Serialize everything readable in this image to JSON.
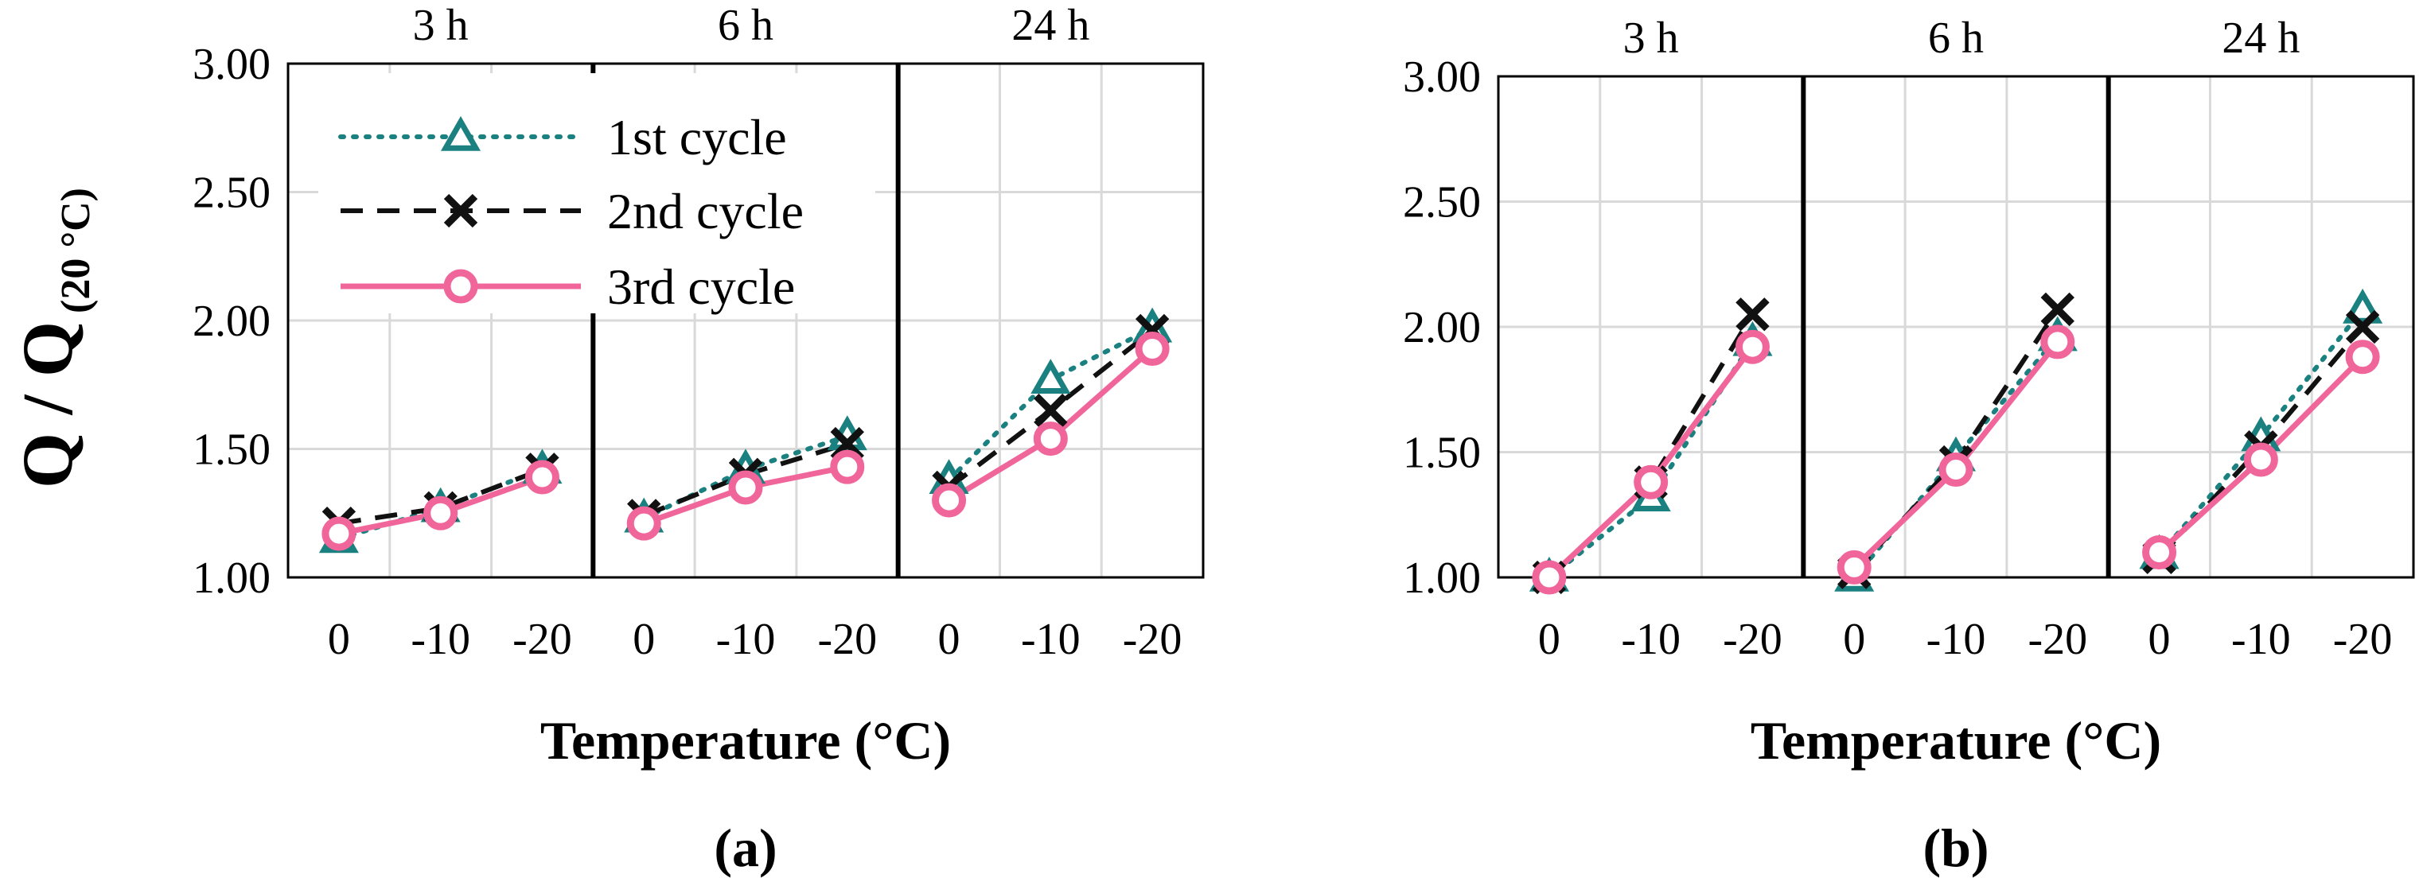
{
  "y_axis_label": {
    "main": "Q / Q",
    "subscript": "(20 °C)"
  },
  "colors": {
    "cycle1": "#1a8080",
    "cycle2": "#111111",
    "cycle3": "#f0669a",
    "grid": "#d9d9d9",
    "frame": "#000000"
  },
  "legend": [
    {
      "key": "cycle1",
      "label": "1st cycle"
    },
    {
      "key": "cycle2",
      "label": "2nd cycle"
    },
    {
      "key": "cycle3",
      "label": "3rd cycle"
    }
  ],
  "chart_data": [
    {
      "type": "line",
      "caption": "(a)",
      "xlabel": "Temperature (°C)",
      "ylim": [
        1.0,
        3.0
      ],
      "yticks": [
        "1.00",
        "1.50",
        "2.00",
        "2.50",
        "3.00"
      ],
      "categories": [
        "0",
        "-10",
        "-20"
      ],
      "panels": [
        {
          "label": "3 h",
          "series": [
            {
              "name": "1st cycle",
              "values": [
                1.15,
                1.27,
                1.42
              ]
            },
            {
              "name": "2nd cycle",
              "values": [
                1.21,
                1.27,
                1.42
              ]
            },
            {
              "name": "3rd cycle",
              "values": [
                1.17,
                1.25,
                1.39
              ]
            }
          ]
        },
        {
          "label": "6 h",
          "series": [
            {
              "name": "1st cycle",
              "values": [
                1.23,
                1.42,
                1.55
              ]
            },
            {
              "name": "2nd cycle",
              "values": [
                1.24,
                1.4,
                1.52
              ]
            },
            {
              "name": "3rd cycle",
              "values": [
                1.21,
                1.35,
                1.43
              ]
            }
          ]
        },
        {
          "label": "24 h",
          "series": [
            {
              "name": "1st cycle",
              "values": [
                1.38,
                1.77,
                1.97
              ]
            },
            {
              "name": "2nd cycle",
              "values": [
                1.35,
                1.65,
                1.96
              ]
            },
            {
              "name": "3rd cycle",
              "values": [
                1.3,
                1.54,
                1.89
              ]
            }
          ]
        }
      ]
    },
    {
      "type": "line",
      "caption": "(b)",
      "xlabel": "Temperature (°C)",
      "ylim": [
        1.0,
        3.0
      ],
      "yticks": [
        "1.00",
        "1.50",
        "2.00",
        "2.50",
        "3.00"
      ],
      "categories": [
        "0",
        "-10",
        "-20"
      ],
      "panels": [
        {
          "label": "3 h",
          "series": [
            {
              "name": "1st cycle",
              "values": [
                1.0,
                1.32,
                1.94
              ]
            },
            {
              "name": "2nd cycle",
              "values": [
                1.0,
                1.38,
                2.05
              ]
            },
            {
              "name": "3rd cycle",
              "values": [
                1.0,
                1.38,
                1.92
              ]
            }
          ]
        },
        {
          "label": "6 h",
          "series": [
            {
              "name": "1st cycle",
              "values": [
                1.0,
                1.48,
                1.96
              ]
            },
            {
              "name": "2nd cycle",
              "values": [
                1.02,
                1.46,
                2.07
              ]
            },
            {
              "name": "3rd cycle",
              "values": [
                1.04,
                1.43,
                1.94
              ]
            }
          ]
        },
        {
          "label": "24 h",
          "series": [
            {
              "name": "1st cycle",
              "values": [
                1.09,
                1.56,
                2.07
              ]
            },
            {
              "name": "2nd cycle",
              "values": [
                1.08,
                1.52,
                2.0
              ]
            },
            {
              "name": "3rd cycle",
              "values": [
                1.1,
                1.47,
                1.88
              ]
            }
          ]
        }
      ]
    }
  ]
}
